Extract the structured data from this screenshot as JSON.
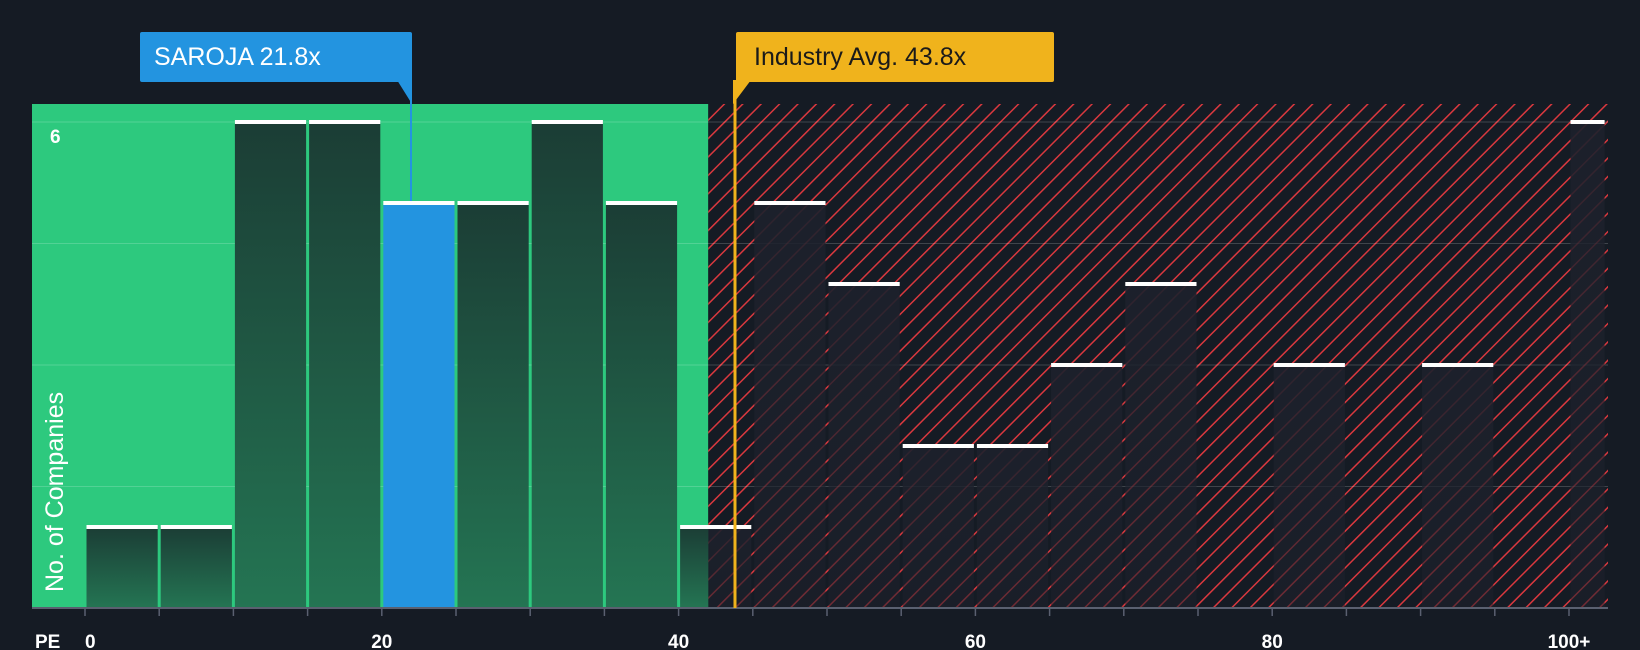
{
  "chart_data": {
    "type": "bar",
    "xlabel": "PE",
    "ylabel": "No. of Companies",
    "x_ticks": [
      "0",
      "20",
      "40",
      "60",
      "80",
      "100+"
    ],
    "x_tick_values": [
      0,
      20,
      40,
      60,
      80,
      100
    ],
    "xlim": [
      0,
      102.5
    ],
    "ylim": [
      0,
      6.2
    ],
    "y_tick_label": "6",
    "y_tick_label_value": 6,
    "gridlines_y": [
      1.5,
      3,
      4.5,
      6
    ],
    "bin_width": 5,
    "bins": [
      {
        "start": 0,
        "end": 5,
        "value": 1
      },
      {
        "start": 5,
        "end": 10,
        "value": 1
      },
      {
        "start": 10,
        "end": 15,
        "value": 6
      },
      {
        "start": 15,
        "end": 20,
        "value": 6
      },
      {
        "start": 20,
        "end": 25,
        "value": 5,
        "highlight": true
      },
      {
        "start": 25,
        "end": 30,
        "value": 5
      },
      {
        "start": 30,
        "end": 35,
        "value": 6
      },
      {
        "start": 35,
        "end": 40,
        "value": 5
      },
      {
        "start": 40,
        "end": 45,
        "value": 1
      },
      {
        "start": 45,
        "end": 50,
        "value": 5
      },
      {
        "start": 50,
        "end": 55,
        "value": 4
      },
      {
        "start": 55,
        "end": 60,
        "value": 2
      },
      {
        "start": 60,
        "end": 65,
        "value": 2
      },
      {
        "start": 65,
        "end": 70,
        "value": 3
      },
      {
        "start": 70,
        "end": 75,
        "value": 4
      },
      {
        "start": 75,
        "end": 80,
        "value": 0
      },
      {
        "start": 80,
        "end": 85,
        "value": 3
      },
      {
        "start": 85,
        "end": 90,
        "value": 0
      },
      {
        "start": 90,
        "end": 95,
        "value": 3
      },
      {
        "start": 95,
        "end": 100,
        "value": 0
      },
      {
        "start": 100,
        "end": 102.5,
        "value": 6
      }
    ],
    "fair_zone_end": 42,
    "company": {
      "label": "SAROJA 21.8x",
      "value": 21.8
    },
    "industry": {
      "label": "Industry Avg. 43.8x",
      "value": 43.8
    },
    "colors": {
      "background": "#151b24",
      "green_zone": "#2dc97e",
      "bar_in_green": "#1d4a3c",
      "bar_in_red": "#1e222d",
      "highlight_bar": "#2394e0",
      "red_hatch": "#d9383e",
      "industry_line": "#f0b31c",
      "bar_cap": "#ffffff"
    }
  }
}
